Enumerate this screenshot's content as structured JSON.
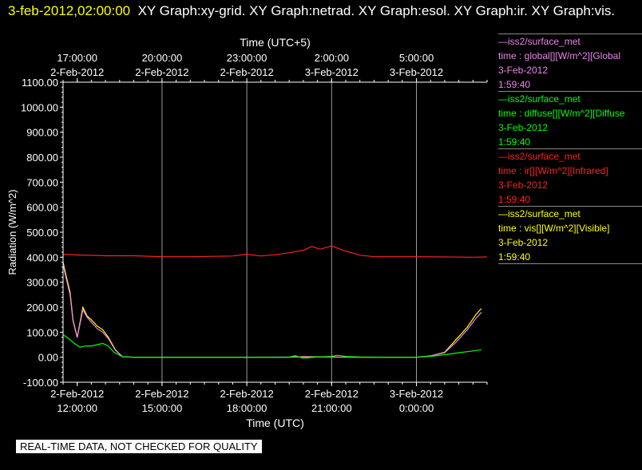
{
  "header": {
    "date_time": "3-feb-2012,02:00:00",
    "graphs": "XY Graph:xy-grid.  XY Graph:netrad.  XY Graph:esol.  XY Graph:ir.  XY Graph:vis."
  },
  "footer": {
    "notice": "REAL-TIME DATA, NOT CHECKED FOR QUALITY"
  },
  "legend": [
    {
      "source": "—iss2/surface_met",
      "variable": "time : global[][W/m^2][Global",
      "date": "3-Feb-2012",
      "time": "1:59:40",
      "color": "#ee82ee"
    },
    {
      "source": "—iss2/surface_met",
      "variable": "time : diffuse[][W/m^2][Diffuse",
      "date": "3-Feb-2012",
      "time": "1:59:40",
      "color": "#00ff00"
    },
    {
      "source": "—iss2/surface_met",
      "variable": "time : ir[][W/m^2][Infrared]",
      "date": "3-Feb-2012",
      "time": "1:59:40",
      "color": "#ff2020"
    },
    {
      "source": "—iss2/surface_met",
      "variable": "time : vis[][W/m^2][Visible]",
      "date": "3-Feb-2012",
      "time": "1:59:40",
      "color": "#ffff00"
    }
  ],
  "chart_data": {
    "type": "line",
    "title": "",
    "xlabel": "Time (UTC)",
    "xlabel_top": "Time (UTC+5)",
    "ylabel": "Radiation (W/m^2)",
    "xlim_hours": [
      11.5,
      26.5
    ],
    "ylim": [
      -100,
      1100
    ],
    "grid": true,
    "legend_placement": "right",
    "y_ticks": [
      -100,
      0,
      100,
      200,
      300,
      400,
      500,
      600,
      700,
      800,
      900,
      1000,
      1100
    ],
    "y_tick_labels": [
      "-100.00",
      "0.00",
      "100.00",
      "200.00",
      "300.00",
      "400.00",
      "500.00",
      "600.00",
      "700.00",
      "800.00",
      "900.00",
      "1000.00",
      "1100.00"
    ],
    "x_ticks_bottom": [
      {
        "hour": 12,
        "date": "2-Feb-2012",
        "time": "12:00:00"
      },
      {
        "hour": 15,
        "date": "2-Feb-2012",
        "time": "15:00:00"
      },
      {
        "hour": 18,
        "date": "2-Feb-2012",
        "time": "18:00:00"
      },
      {
        "hour": 21,
        "date": "2-Feb-2012",
        "time": "21:00:00"
      },
      {
        "hour": 24,
        "date": "3-Feb-2012",
        "time": "0:00:00"
      }
    ],
    "x_ticks_top": [
      {
        "hour": 12,
        "time": "17:00:00",
        "date": "2-Feb-2012"
      },
      {
        "hour": 15,
        "time": "20:00:00",
        "date": "2-Feb-2012"
      },
      {
        "hour": 18,
        "time": "23:00:00",
        "date": "2-Feb-2012"
      },
      {
        "hour": 21,
        "time": "2:00:00",
        "date": "3-Feb-2012"
      },
      {
        "hour": 24,
        "time": "5:00:00",
        "date": "3-Feb-2012"
      }
    ],
    "series": [
      {
        "name": "Infrared",
        "color": "#ff2020",
        "x": [
          11.5,
          12.0,
          13.0,
          14.0,
          15.0,
          16.0,
          17.5,
          18.0,
          18.5,
          19.0,
          19.5,
          20.0,
          20.3,
          20.6,
          21.0,
          21.4,
          21.7,
          22.0,
          22.5,
          23.0,
          24.0,
          25.0,
          26.0,
          26.5
        ],
        "y": [
          412,
          409,
          406,
          406,
          402,
          402,
          405,
          412,
          405,
          410,
          418,
          428,
          443,
          432,
          445,
          428,
          418,
          408,
          402,
          402,
          402,
          401,
          400,
          401
        ]
      },
      {
        "name": "Visible",
        "color": "#ffff00",
        "x": [
          11.5,
          11.6,
          11.75,
          11.85,
          12.0,
          12.2,
          12.35,
          12.5,
          12.7,
          12.9,
          13.1,
          13.35,
          13.6,
          14.0,
          16.0,
          18.0,
          19.5,
          20.0,
          21.0,
          22.0,
          24.0,
          24.5,
          25.0,
          25.4,
          25.8,
          26.1,
          26.3
        ],
        "y": [
          380,
          330,
          260,
          150,
          80,
          200,
          165,
          150,
          125,
          110,
          80,
          30,
          2,
          0,
          0,
          0,
          0,
          2,
          1,
          0,
          0,
          5,
          20,
          70,
          120,
          170,
          195
        ]
      },
      {
        "name": "Global",
        "color": "#ee82ee",
        "x": [
          11.5,
          11.6,
          11.75,
          11.85,
          12.0,
          12.2,
          12.35,
          12.5,
          12.7,
          12.9,
          13.1,
          13.35,
          13.6,
          14.0,
          16.0,
          18.0,
          20.0,
          22.0,
          24.0,
          24.5,
          25.0,
          25.4,
          25.8,
          26.1,
          26.3
        ],
        "y": [
          370,
          320,
          250,
          145,
          78,
          190,
          160,
          140,
          115,
          100,
          75,
          28,
          2,
          0,
          0,
          0,
          1,
          0,
          0,
          5,
          18,
          60,
          110,
          155,
          180
        ]
      },
      {
        "name": "Diffuse",
        "color": "#00ff00",
        "x": [
          11.5,
          11.7,
          11.9,
          12.1,
          12.3,
          12.5,
          12.7,
          12.9,
          13.1,
          13.3,
          13.6,
          14.0,
          16.0,
          18.0,
          19.0,
          19.5,
          19.7,
          20.0,
          20.5,
          21.0,
          21.2,
          21.5,
          22.0,
          23.0,
          24.0,
          24.5,
          25.0,
          25.5,
          26.0,
          26.3
        ],
        "y": [
          90,
          75,
          55,
          40,
          45,
          45,
          50,
          55,
          45,
          20,
          2,
          0,
          0,
          0,
          0,
          0,
          6,
          -4,
          1,
          3,
          8,
          3,
          1,
          0,
          0,
          3,
          10,
          18,
          25,
          30
        ]
      }
    ]
  }
}
